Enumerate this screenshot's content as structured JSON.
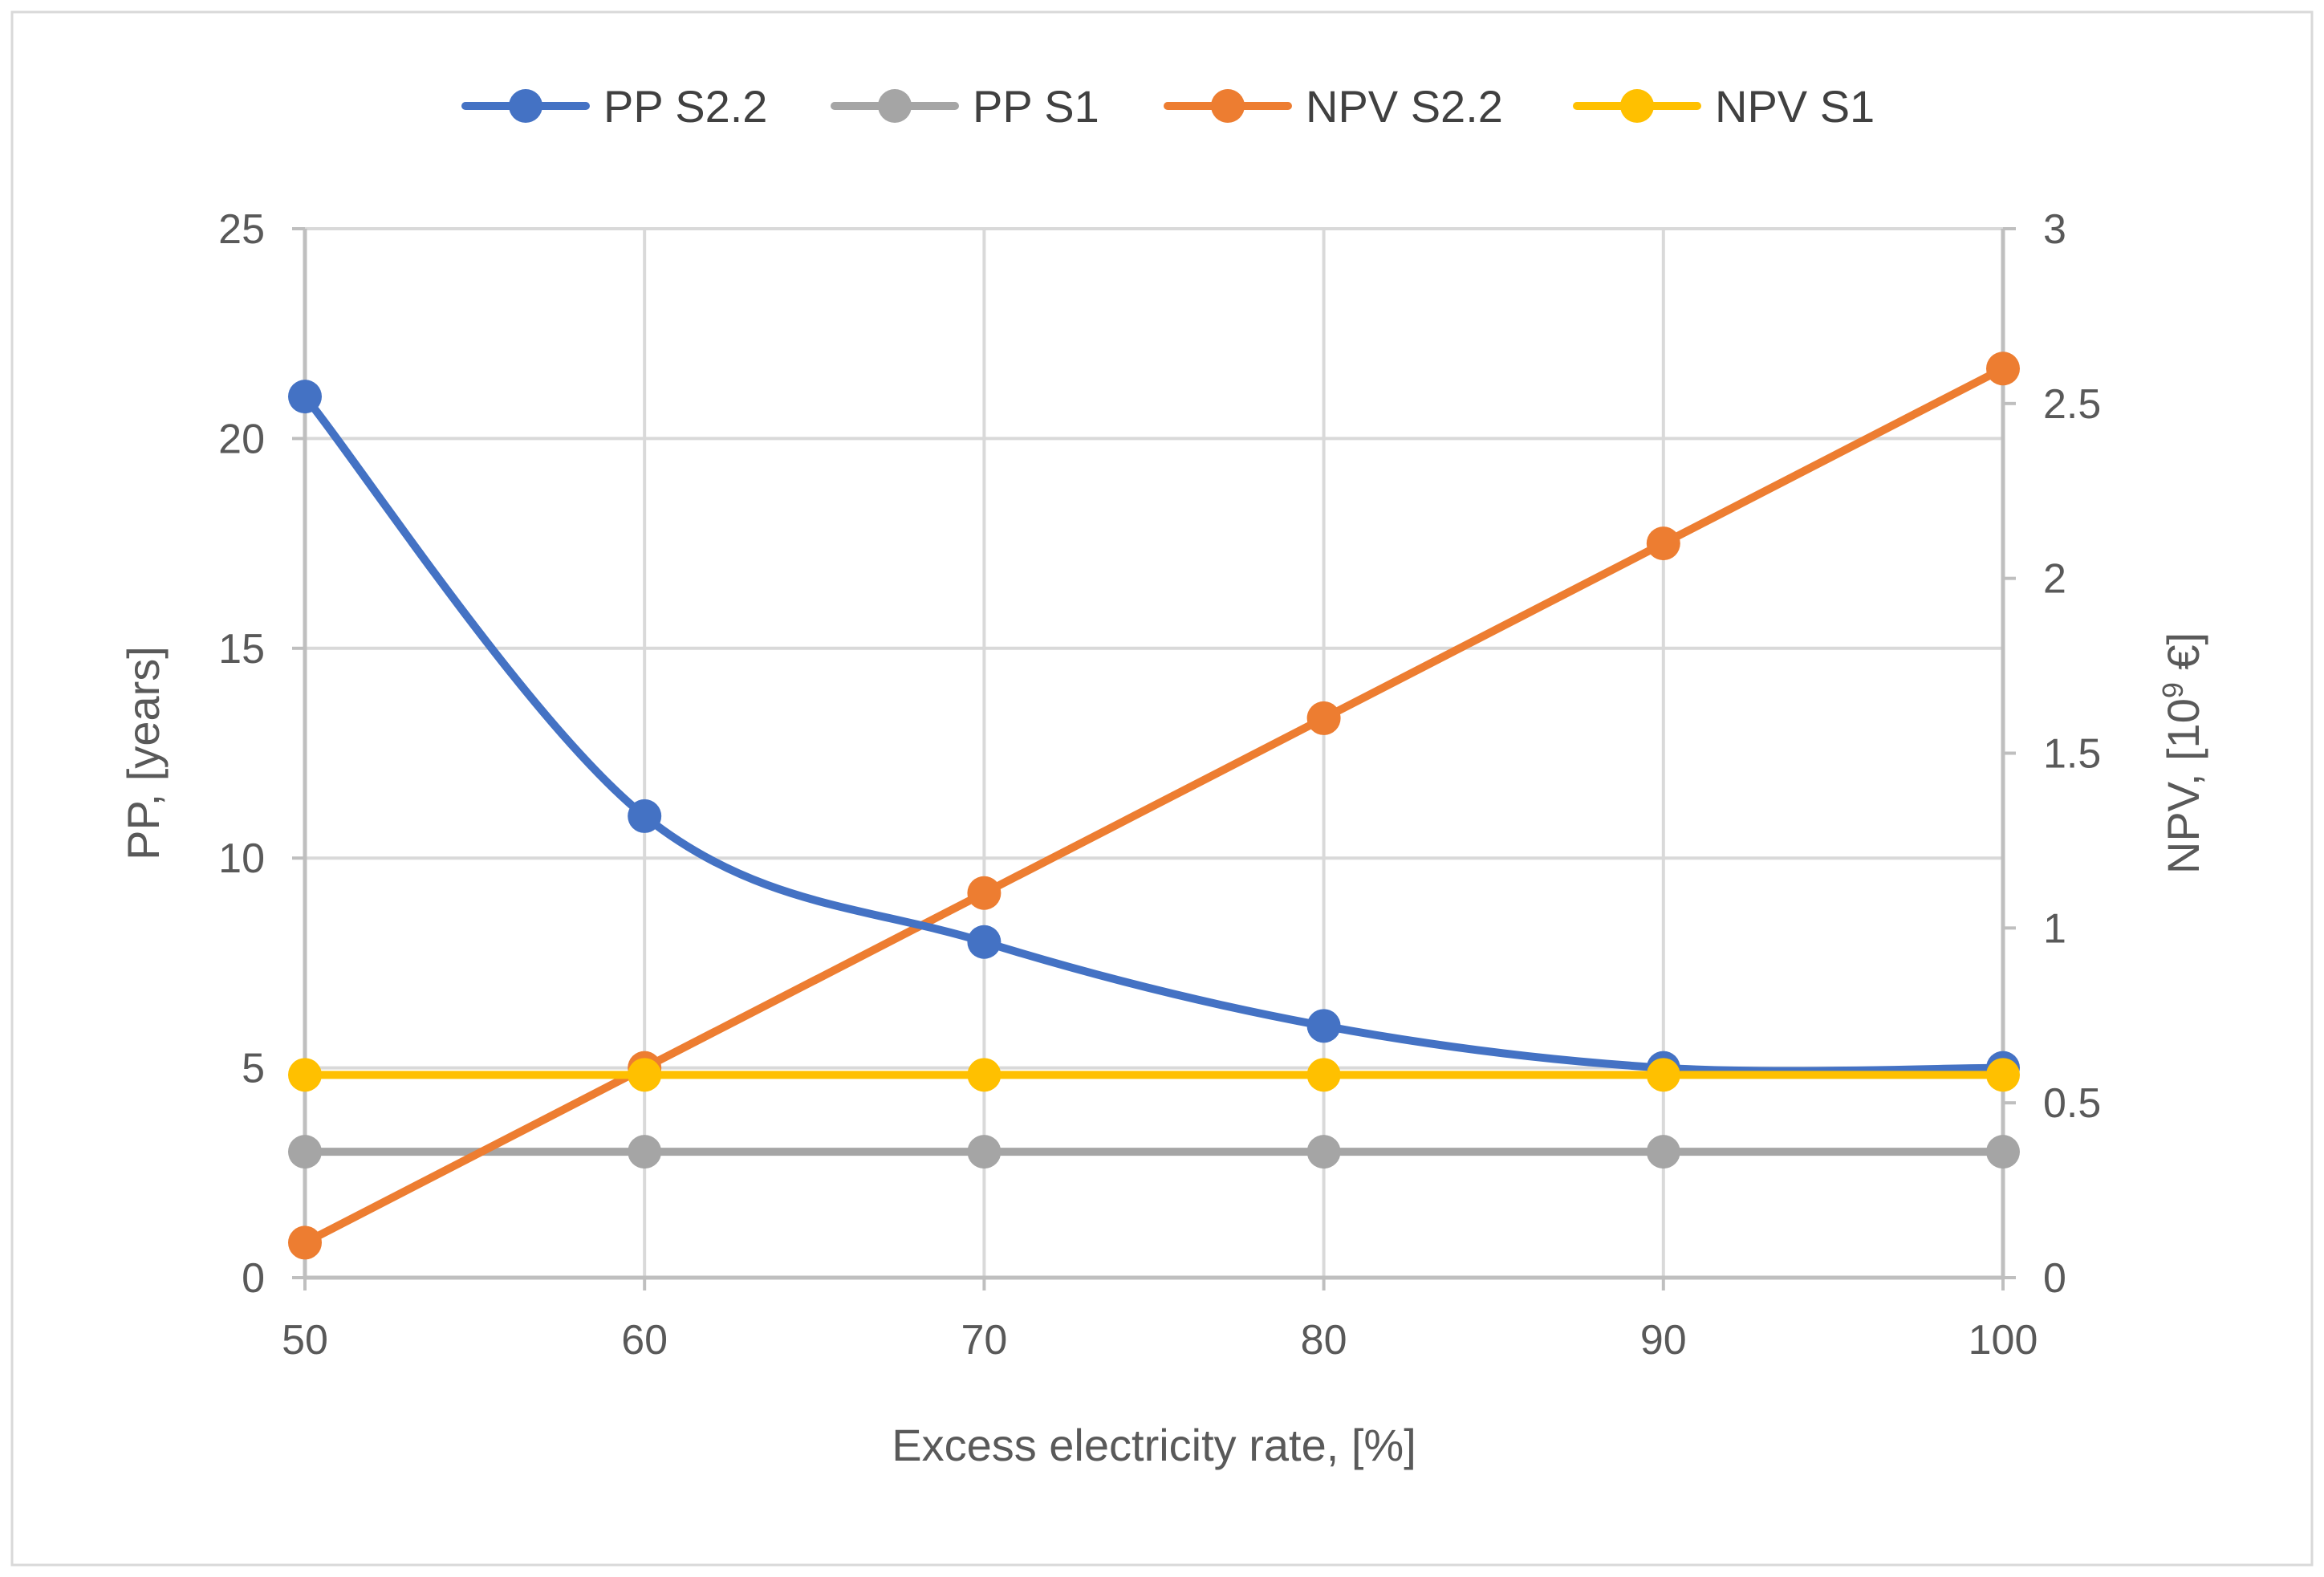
{
  "chart_data": {
    "type": "line",
    "title": "",
    "xlabel": "Excess electricity rate, [%]",
    "ylabel_left": "PP, [years]",
    "ylabel_right_prefix": "NPV, [10",
    "ylabel_right_sup": "9",
    "ylabel_right_suffix": " €]",
    "x": [
      50,
      60,
      70,
      80,
      90,
      100
    ],
    "x_ticks": [
      "50",
      "60",
      "70",
      "80",
      "90",
      "100"
    ],
    "xlim": [
      50,
      100
    ],
    "ylim_left": [
      0,
      25
    ],
    "y_left_ticks": [
      "0",
      "5",
      "10",
      "15",
      "20",
      "25"
    ],
    "ylim_right": [
      0,
      3
    ],
    "y_right_ticks": [
      "0",
      "0.5",
      "1",
      "1.5",
      "2",
      "2.5",
      "3"
    ],
    "grid": true,
    "legend_position": "top",
    "series": [
      {
        "name": "PP S2.2",
        "axis": "left",
        "color": "#4472C4",
        "smooth": true,
        "values": [
          21,
          11,
          8,
          6,
          5,
          5
        ]
      },
      {
        "name": "PP S1",
        "axis": "left",
        "color": "#A5A5A5",
        "smooth": false,
        "values": [
          3,
          3,
          3,
          3,
          3,
          3
        ]
      },
      {
        "name": "NPV S2.2",
        "axis": "right",
        "color": "#ED7D31",
        "smooth": false,
        "values": [
          0.1,
          0.6,
          1.1,
          1.6,
          2.1,
          2.6
        ]
      },
      {
        "name": "NPV S1",
        "axis": "right",
        "color": "#FFC000",
        "smooth": false,
        "values": [
          0.58,
          0.58,
          0.58,
          0.58,
          0.58,
          0.58
        ]
      }
    ],
    "colors": {
      "grid": "#d9d9d9",
      "axis": "#bfbfbf",
      "frame": "#d9d9d9"
    }
  }
}
